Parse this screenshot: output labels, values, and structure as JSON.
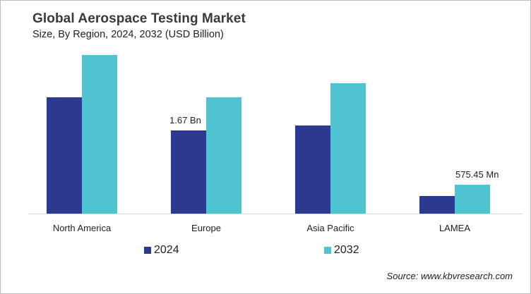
{
  "header": {
    "title": "Global Aerospace Testing Market",
    "subtitle": "Size, By Region, 2024, 2032 (USD Billion)"
  },
  "legend": [
    {
      "label": "2024",
      "color": "#2b3990"
    },
    {
      "label": "2032",
      "color": "#4fc3cf"
    }
  ],
  "data_labels": {
    "europe_2024": "1.67 Bn",
    "lamea_2032": "575.45 Mn"
  },
  "footer": {
    "source": "Source: www.kbvresearch.com"
  },
  "chart_data": {
    "type": "bar",
    "title": "Global Aerospace Testing Market",
    "subtitle": "Size, By Region, 2024, 2032 (USD Billion)",
    "xlabel": "",
    "ylabel": "USD Billion",
    "categories": [
      "North America",
      "Europe",
      "Asia Pacific",
      "LAMEA"
    ],
    "series": [
      {
        "name": "2024",
        "color": "#2b3990",
        "values": [
          2.33,
          1.67,
          1.77,
          0.35
        ]
      },
      {
        "name": "2032",
        "color": "#4fc3cf",
        "values": [
          3.18,
          2.33,
          2.61,
          0.575
        ]
      }
    ],
    "annotations": [
      {
        "category": "Europe",
        "series": "2024",
        "text": "1.67 Bn"
      },
      {
        "category": "LAMEA",
        "series": "2032",
        "text": "575.45 Mn"
      }
    ],
    "ylim": [
      0,
      3.45
    ],
    "grid": false,
    "y_axis_visible": false,
    "legend_position": "bottom"
  }
}
